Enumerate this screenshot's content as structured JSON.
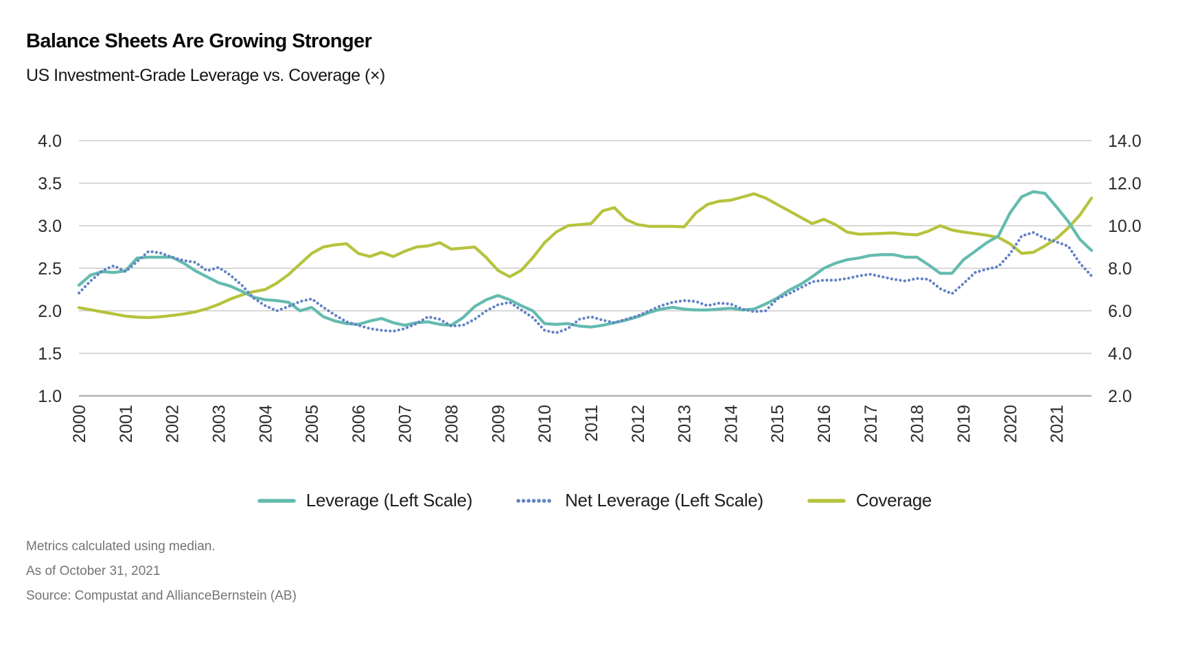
{
  "header": {
    "title": "Balance Sheets Are Growing Stronger",
    "subtitle": "US Investment-Grade Leverage vs. Coverage (×)"
  },
  "legend": [
    {
      "label": "Leverage (Left Scale)",
      "style": "solid",
      "color": "#64bbaf"
    },
    {
      "label": "Net Leverage (Left Scale)",
      "style": "dotted",
      "color": "#6282c3"
    },
    {
      "label": "Coverage",
      "style": "solid",
      "color": "#b6c33d"
    }
  ],
  "footnotes": [
    "Metrics calculated using median.",
    "As of October 31, 2021",
    "Source: Compustat and AllianceBernstein (AB)"
  ],
  "colors": {
    "leverage": "#64bbaf",
    "net_leverage": "#6282c3",
    "coverage": "#b6c33d",
    "gridline": "#cccccc",
    "axis_line": "#b1b1b1",
    "tick_text": "#2b2b2b",
    "footnote_text": "#747474"
  },
  "chart_data": {
    "type": "line",
    "title": "Balance Sheets Are Growing Stronger",
    "subtitle": "US Investment-Grade Leverage vs. Coverage (×)",
    "frequency": "quarterly",
    "grid": true,
    "legend_position": "bottom",
    "x_years": [
      "2000",
      "2001",
      "2002",
      "2003",
      "2004",
      "2005",
      "2006",
      "2007",
      "2008",
      "2009",
      "2010",
      "2011",
      "2012",
      "2013",
      "2014",
      "2015",
      "2016",
      "2017",
      "2018",
      "2019",
      "2020",
      "2021"
    ],
    "left_axis": {
      "ticks": [
        "4.0",
        "3.5",
        "3.0",
        "2.5",
        "2.0",
        "1.5",
        "1.0"
      ],
      "range": [
        1.0,
        4.0
      ]
    },
    "right_axis": {
      "ticks": [
        "14.0",
        "12.0",
        "10.0",
        "8.0",
        "6.0",
        "4.0",
        "2.0"
      ],
      "range": [
        2.0,
        14.0
      ]
    },
    "series": [
      {
        "name": "Leverage (Left Scale)",
        "axis": "left",
        "style": "solid",
        "color": "#64bbaf",
        "values": [
          2.3,
          2.42,
          2.46,
          2.45,
          2.47,
          2.62,
          2.63,
          2.63,
          2.63,
          2.56,
          2.47,
          2.4,
          2.33,
          2.29,
          2.23,
          2.16,
          2.13,
          2.12,
          2.1,
          2.0,
          2.04,
          1.93,
          1.88,
          1.85,
          1.84,
          1.88,
          1.91,
          1.86,
          1.83,
          1.86,
          1.87,
          1.84,
          1.83,
          1.92,
          2.05,
          2.13,
          2.18,
          2.13,
          2.06,
          2.0,
          1.85,
          1.84,
          1.85,
          1.82,
          1.81,
          1.83,
          1.86,
          1.89,
          1.93,
          1.98,
          2.02,
          2.04,
          2.02,
          2.01,
          2.01,
          2.02,
          2.03,
          2.01,
          2.02,
          2.08,
          2.15,
          2.24,
          2.31,
          2.4,
          2.5,
          2.56,
          2.6,
          2.62,
          2.65,
          2.66,
          2.66,
          2.63,
          2.63,
          2.54,
          2.44,
          2.44,
          2.6,
          2.7,
          2.8,
          2.88,
          3.15,
          3.34,
          3.4,
          3.38,
          3.22,
          3.05,
          2.84,
          2.71
        ]
      },
      {
        "name": "Net Leverage (Left Scale)",
        "axis": "left",
        "style": "dotted",
        "color": "#6282c3",
        "values": [
          2.21,
          2.35,
          2.47,
          2.53,
          2.46,
          2.58,
          2.7,
          2.68,
          2.63,
          2.59,
          2.57,
          2.47,
          2.51,
          2.42,
          2.3,
          2.15,
          2.06,
          2.0,
          2.05,
          2.11,
          2.14,
          2.04,
          1.95,
          1.87,
          1.83,
          1.79,
          1.77,
          1.76,
          1.79,
          1.85,
          1.93,
          1.9,
          1.82,
          1.83,
          1.9,
          2.0,
          2.07,
          2.1,
          2.01,
          1.92,
          1.77,
          1.74,
          1.79,
          1.9,
          1.93,
          1.89,
          1.86,
          1.9,
          1.94,
          2.0,
          2.06,
          2.1,
          2.12,
          2.11,
          2.06,
          2.09,
          2.08,
          2.02,
          1.99,
          2.0,
          2.14,
          2.2,
          2.27,
          2.34,
          2.36,
          2.36,
          2.38,
          2.41,
          2.43,
          2.4,
          2.37,
          2.35,
          2.38,
          2.37,
          2.26,
          2.2,
          2.32,
          2.45,
          2.49,
          2.52,
          2.67,
          2.88,
          2.92,
          2.85,
          2.81,
          2.76,
          2.56,
          2.41
        ]
      },
      {
        "name": "Coverage",
        "axis": "right",
        "style": "solid",
        "color": "#b6c33d",
        "values": [
          6.15,
          6.05,
          5.95,
          5.85,
          5.75,
          5.7,
          5.68,
          5.72,
          5.78,
          5.85,
          5.95,
          6.1,
          6.3,
          6.55,
          6.75,
          6.9,
          7.0,
          7.3,
          7.7,
          8.2,
          8.7,
          9.0,
          9.1,
          9.15,
          8.7,
          8.55,
          8.75,
          8.55,
          8.8,
          9.0,
          9.05,
          9.2,
          8.9,
          8.95,
          9.0,
          8.5,
          7.9,
          7.6,
          7.9,
          8.5,
          9.2,
          9.7,
          10.0,
          10.05,
          10.1,
          10.7,
          10.85,
          10.3,
          10.05,
          9.97,
          9.97,
          9.97,
          9.95,
          10.6,
          11.0,
          11.15,
          11.2,
          11.35,
          11.5,
          11.3,
          11.0,
          10.7,
          10.4,
          10.1,
          10.3,
          10.05,
          9.7,
          9.6,
          9.62,
          9.64,
          9.66,
          9.6,
          9.57,
          9.75,
          10.0,
          9.8,
          9.7,
          9.63,
          9.55,
          9.45,
          9.15,
          8.7,
          8.75,
          9.05,
          9.4,
          9.9,
          10.5,
          11.3
        ]
      }
    ]
  }
}
